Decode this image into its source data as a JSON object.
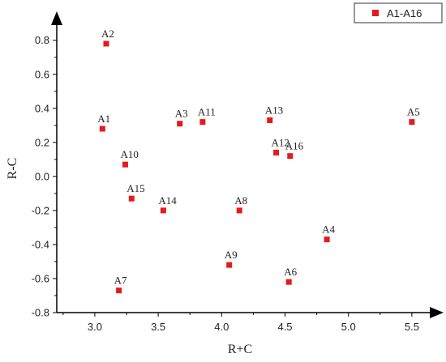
{
  "chart_data": {
    "type": "scatter",
    "xlabel": "R+C",
    "ylabel": "R-C",
    "xlim": [
      2.7,
      5.75
    ],
    "ylim": [
      -0.8,
      0.97
    ],
    "xticks": [
      3.0,
      3.5,
      4.0,
      4.5,
      5.0,
      5.5
    ],
    "xtick_labels": [
      "3.0",
      "3.5",
      "4.0",
      "4.5",
      "5.0",
      "5.5"
    ],
    "yticks": [
      -0.8,
      -0.6,
      -0.4,
      -0.2,
      0.0,
      0.2,
      0.4,
      0.6,
      0.8
    ],
    "ytick_labels": [
      "-0.8",
      "-0.6",
      "-0.4",
      "-0.2",
      "0.0",
      "0.2",
      "0.4",
      "0.6",
      "0.8"
    ],
    "legend": {
      "position": "top-right",
      "entries": [
        "A1-A16"
      ]
    },
    "marker_color": "#e41a1c",
    "series": [
      {
        "name": "A1-A16",
        "points": [
          {
            "label": "A1",
            "x": 3.06,
            "y": 0.28
          },
          {
            "label": "A2",
            "x": 3.09,
            "y": 0.78
          },
          {
            "label": "A3",
            "x": 3.67,
            "y": 0.31
          },
          {
            "label": "A4",
            "x": 4.83,
            "y": -0.37
          },
          {
            "label": "A5",
            "x": 5.5,
            "y": 0.32
          },
          {
            "label": "A6",
            "x": 4.53,
            "y": -0.62
          },
          {
            "label": "A7",
            "x": 3.19,
            "y": -0.67
          },
          {
            "label": "A8",
            "x": 4.14,
            "y": -0.2
          },
          {
            "label": "A9",
            "x": 4.06,
            "y": -0.52
          },
          {
            "label": "A10",
            "x": 3.24,
            "y": 0.07
          },
          {
            "label": "A11",
            "x": 3.85,
            "y": 0.32
          },
          {
            "label": "A12",
            "x": 4.43,
            "y": 0.14
          },
          {
            "label": "A13",
            "x": 4.38,
            "y": 0.33
          },
          {
            "label": "A14",
            "x": 3.54,
            "y": -0.2
          },
          {
            "label": "A15",
            "x": 3.29,
            "y": -0.13
          },
          {
            "label": "A16",
            "x": 4.54,
            "y": 0.12
          }
        ]
      }
    ]
  }
}
